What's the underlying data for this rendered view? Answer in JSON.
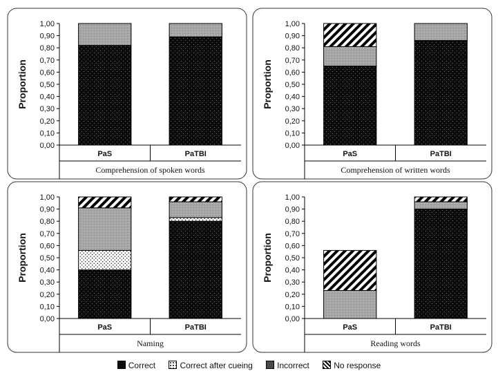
{
  "chart_data": [
    {
      "type": "bar",
      "stacked": true,
      "title": "Comprehension of spoken words",
      "ylabel": "Proportion",
      "ylim": [
        0,
        1
      ],
      "yticks": [
        "0,00",
        "0,10",
        "0,20",
        "0,30",
        "0,40",
        "0,50",
        "0,60",
        "0,70",
        "0,80",
        "0,90",
        "1,00"
      ],
      "categories": [
        "PaS",
        "PaTBI"
      ],
      "series": [
        {
          "name": "Correct",
          "values": [
            0.82,
            0.89
          ]
        },
        {
          "name": "Correct after cueing",
          "values": [
            0,
            0
          ]
        },
        {
          "name": "Incorrect",
          "values": [
            0.18,
            0.11
          ]
        },
        {
          "name": "No response",
          "values": [
            0,
            0
          ]
        }
      ]
    },
    {
      "type": "bar",
      "stacked": true,
      "title": "Comprehension of written words",
      "ylabel": "Proportion",
      "ylim": [
        0,
        1
      ],
      "yticks": [
        "0,00",
        "0,10",
        "0,20",
        "0,30",
        "0,40",
        "0,50",
        "0,60",
        "0,70",
        "0,80",
        "0,90",
        "1,00"
      ],
      "categories": [
        "PaS",
        "PaTBI"
      ],
      "series": [
        {
          "name": "Correct",
          "values": [
            0.65,
            0.86
          ]
        },
        {
          "name": "Correct after cueing",
          "values": [
            0,
            0
          ]
        },
        {
          "name": "Incorrect",
          "values": [
            0.16,
            0.14
          ]
        },
        {
          "name": "No response",
          "values": [
            0.19,
            0
          ]
        }
      ]
    },
    {
      "type": "bar",
      "stacked": true,
      "title": "Naming",
      "ylabel": "Proportion",
      "ylim": [
        0,
        1
      ],
      "yticks": [
        "0,00",
        "0,10",
        "0,20",
        "0,30",
        "0,40",
        "0,50",
        "0,60",
        "0,70",
        "0,80",
        "0,90",
        "1,00"
      ],
      "categories": [
        "PaS",
        "PaTBI"
      ],
      "series": [
        {
          "name": "Correct",
          "values": [
            0.4,
            0.8
          ]
        },
        {
          "name": "Correct after cueing",
          "values": [
            0.16,
            0.03
          ]
        },
        {
          "name": "Incorrect",
          "values": [
            0.35,
            0.13
          ]
        },
        {
          "name": "No response",
          "values": [
            0.09,
            0.04
          ]
        }
      ]
    },
    {
      "type": "bar",
      "stacked": true,
      "title": "Reading words",
      "ylabel": "Proportion",
      "ylim": [
        0,
        1
      ],
      "yticks": [
        "0,00",
        "0,10",
        "0,20",
        "0,30",
        "0,40",
        "0,50",
        "0,60",
        "0,70",
        "0,80",
        "0,90",
        "1,00"
      ],
      "categories": [
        "PaS",
        "PaTBI"
      ],
      "series": [
        {
          "name": "Correct",
          "values": [
            0,
            0.9
          ]
        },
        {
          "name": "Correct after cueing",
          "values": [
            0,
            0
          ]
        },
        {
          "name": "Incorrect",
          "values": [
            0.23,
            0.06
          ]
        },
        {
          "name": "No response",
          "values": [
            0.33,
            0.04
          ]
        }
      ]
    }
  ],
  "legend": [
    {
      "label": "Correct",
      "pattern": "dots-dark"
    },
    {
      "label": "Correct after cueing",
      "pattern": "dots-light"
    },
    {
      "label": "Incorrect",
      "pattern": "grey"
    },
    {
      "label": "No response",
      "pattern": "hatch"
    }
  ]
}
